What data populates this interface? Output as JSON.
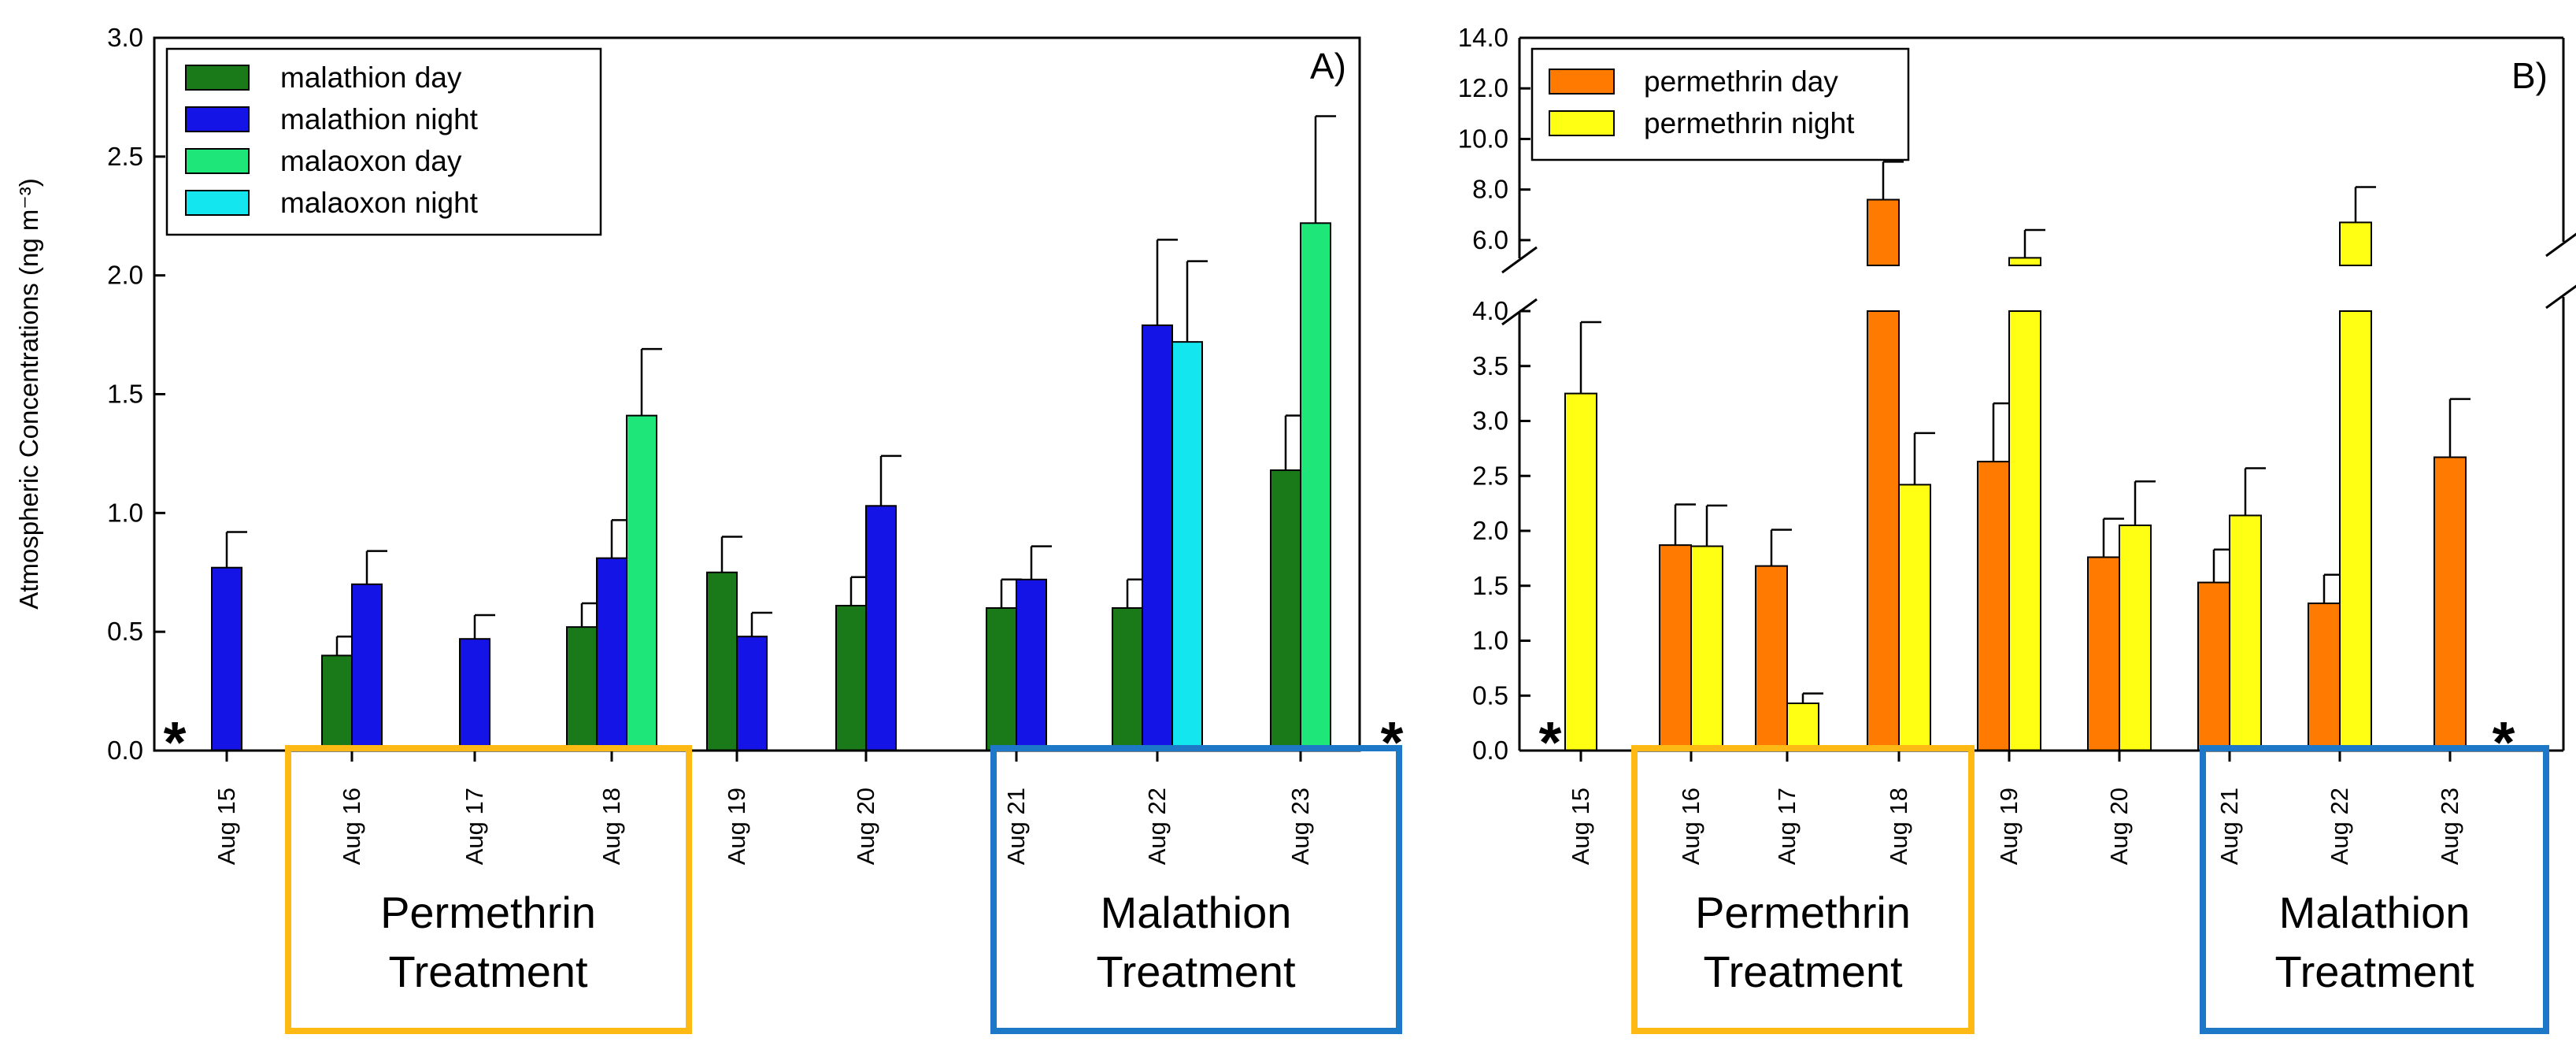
{
  "chart_data": [
    {
      "type": "bar",
      "panel_label": "A)",
      "ylabel": "Atmospheric Concentrations (ng m⁻³)",
      "ylim": [
        0,
        3.0
      ],
      "ytick_labels": [
        "0.0",
        "0.5",
        "1.0",
        "1.5",
        "2.0",
        "2.5",
        "3.0"
      ],
      "categories": [
        "Aug 15",
        "Aug 16",
        "Aug 17",
        "Aug 18",
        "Aug 19",
        "Aug 20",
        "Aug 21",
        "Aug 22",
        "Aug 23"
      ],
      "series": [
        {
          "name": "malathion day",
          "color": "#1a7a1a",
          "values": [
            null,
            0.4,
            null,
            0.52,
            0.75,
            0.61,
            0.6,
            0.6,
            1.18
          ],
          "errors": [
            null,
            0.08,
            null,
            0.1,
            0.15,
            0.12,
            0.12,
            0.12,
            0.23
          ]
        },
        {
          "name": "malathion night",
          "color": "#1414e6",
          "values": [
            0.77,
            0.7,
            0.47,
            0.81,
            0.48,
            1.03,
            0.72,
            1.79,
            null
          ],
          "errors": [
            0.15,
            0.14,
            0.1,
            0.16,
            0.1,
            0.21,
            0.14,
            0.36,
            null
          ]
        },
        {
          "name": "malaoxon day",
          "color": "#1ee678",
          "values": [
            null,
            null,
            null,
            1.41,
            null,
            null,
            null,
            null,
            2.22
          ],
          "errors": [
            null,
            null,
            null,
            0.28,
            null,
            null,
            null,
            null,
            0.45
          ]
        },
        {
          "name": "malaoxon night",
          "color": "#14e6f0",
          "values": [
            null,
            null,
            null,
            null,
            null,
            null,
            null,
            1.72,
            null
          ],
          "errors": [
            null,
            null,
            null,
            null,
            null,
            null,
            null,
            0.34,
            null
          ]
        }
      ],
      "markers": [
        {
          "text": "*",
          "color": "#23b423",
          "position": "Aug 15"
        },
        {
          "text": "*",
          "color": "#1e64b4",
          "position": "Aug 23"
        }
      ],
      "annotations": [
        {
          "lines": [
            "Permethrin",
            "Treatment"
          ],
          "color": "#ffb914",
          "spans": [
            "Aug 16",
            "Aug 18"
          ]
        },
        {
          "lines": [
            "Malathion",
            "Treatment"
          ],
          "color": "#1e78c8",
          "spans": [
            "Aug 21",
            "Aug 23"
          ]
        }
      ]
    },
    {
      "type": "bar",
      "panel_label": "B)",
      "ylim_lower": [
        0,
        4.0
      ],
      "ylim_upper": [
        5.0,
        14.0
      ],
      "ytick_labels_lower": [
        "0.0",
        "0.5",
        "1.0",
        "1.5",
        "2.0",
        "2.5",
        "3.0",
        "3.5",
        "4.0"
      ],
      "ytick_labels_upper": [
        "6.0",
        "8.0",
        "10.0",
        "12.0",
        "14.0"
      ],
      "categories": [
        "Aug 15",
        "Aug 16",
        "Aug 17",
        "Aug 18",
        "Aug 19",
        "Aug 20",
        "Aug 21",
        "Aug 22",
        "Aug 23"
      ],
      "series": [
        {
          "name": "permethrin day",
          "color": "#ff7a00",
          "values": [
            null,
            1.87,
            1.68,
            7.6,
            2.63,
            1.76,
            1.53,
            1.34,
            2.67
          ],
          "errors": [
            null,
            0.37,
            0.33,
            1.5,
            0.53,
            0.35,
            0.3,
            0.26,
            0.53
          ]
        },
        {
          "name": "permethrin night",
          "color": "#ffff14",
          "values": [
            3.25,
            1.86,
            0.43,
            2.42,
            5.3,
            2.05,
            2.14,
            6.7,
            null
          ],
          "errors": [
            0.65,
            0.37,
            0.09,
            0.47,
            1.1,
            0.4,
            0.43,
            1.4,
            null
          ]
        }
      ],
      "markers": [
        {
          "text": "*",
          "color": "#ff9a32",
          "position": "Aug 15"
        },
        {
          "text": "*",
          "color": "#c8c814",
          "position": "Aug 23"
        }
      ],
      "annotations": [
        {
          "lines": [
            "Permethrin",
            "Treatment"
          ],
          "color": "#ffb914",
          "spans": [
            "Aug 16",
            "Aug 18"
          ]
        },
        {
          "lines": [
            "Malathion",
            "Treatment"
          ],
          "color": "#1e78c8",
          "spans": [
            "Aug 21",
            "Aug 23"
          ]
        }
      ]
    }
  ]
}
